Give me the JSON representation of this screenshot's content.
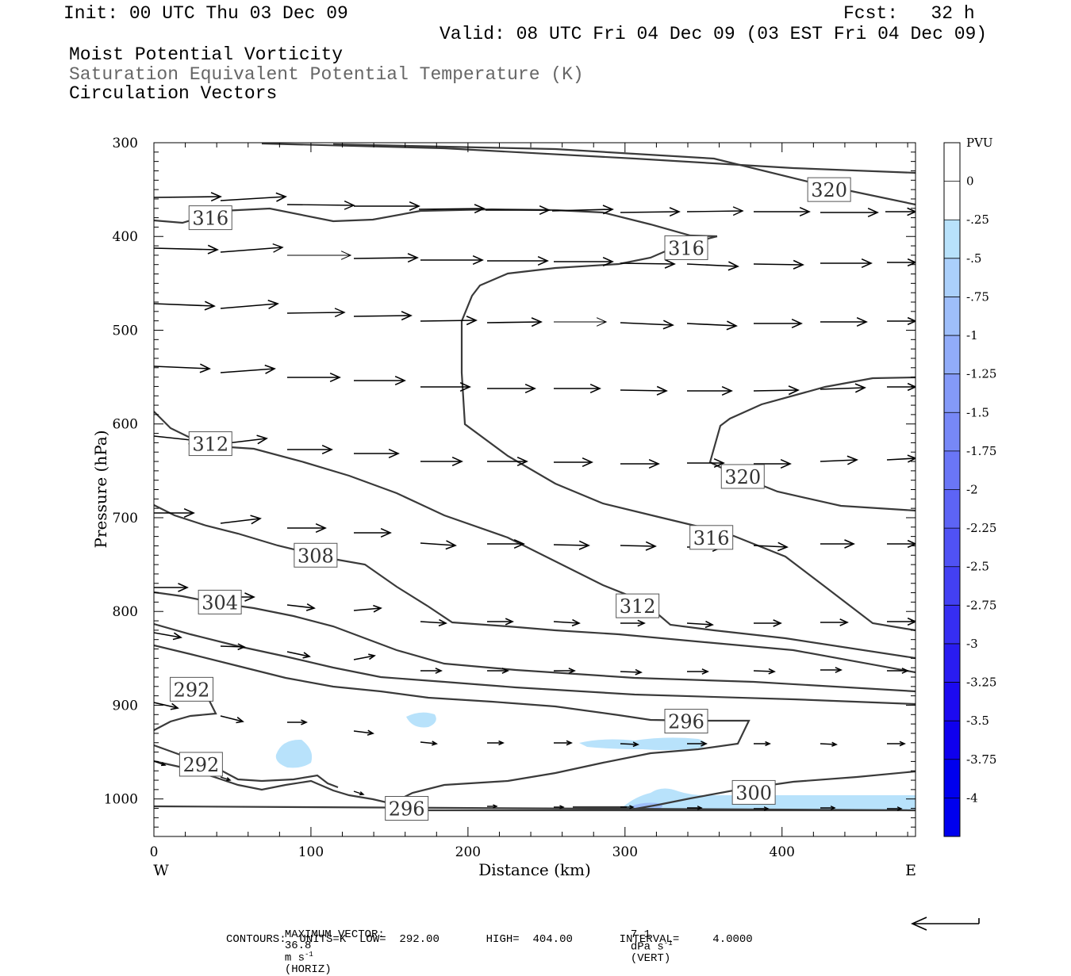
{
  "header": {
    "init": "Init: 00 UTC Thu 03 Dec 09",
    "fcst": "Fcst:   32 h",
    "valid": "Valid: 08 UTC Fri 04 Dec 09 (03 EST Fri 04 Dec 09)",
    "field1": "Moist Potential Vorticity",
    "field2": "Saturation Equivalent Potential Temperature (K)",
    "field3": "Circulation Vectors"
  },
  "footer": {
    "max_vector_label": "MAXIMUM VECTOR:",
    "max_horiz_value": "36.8",
    "horiz_units": "m s",
    "horiz_tag": "(HORIZ)",
    "max_vert_value": "7.1",
    "vert_units": "dPa s",
    "vert_tag": "(VERT)",
    "exponent": "-1",
    "contours_line": "CONTOURS:  UNITS=K  LOW=  292.00       HIGH=  404.00       INTERVAL=     4.0000"
  },
  "colors": {
    "contour": "#3a3a3a",
    "arrow": "#000000",
    "pv_shade": "#b8e2fb"
  },
  "chart_data": {
    "type": "cross-section",
    "xlabel": "Distance (km)",
    "ylabel": "Pressure (hPa)",
    "xlim": [
      0,
      485
    ],
    "ylim": [
      1040,
      300
    ],
    "x_ticks": [
      0,
      100,
      200,
      300,
      400
    ],
    "y_ticks": [
      300,
      400,
      500,
      600,
      700,
      800,
      900,
      1000
    ],
    "x_end_labels": {
      "west": "W",
      "east": "E"
    },
    "contour_labels": [
      {
        "value": "320",
        "x": 430,
        "p": 350
      },
      {
        "value": "316",
        "x": 36,
        "p": 380
      },
      {
        "value": "316",
        "x": 339,
        "p": 412
      },
      {
        "value": "312",
        "x": 36,
        "p": 621
      },
      {
        "value": "320",
        "x": 375,
        "p": 656
      },
      {
        "value": "316",
        "x": 355,
        "p": 721
      },
      {
        "value": "308",
        "x": 103,
        "p": 740
      },
      {
        "value": "304",
        "x": 42,
        "p": 790
      },
      {
        "value": "312",
        "x": 308,
        "p": 794
      },
      {
        "value": "292",
        "x": 24,
        "p": 883
      },
      {
        "value": "296",
        "x": 339,
        "p": 917
      },
      {
        "value": "292",
        "x": 30,
        "p": 963
      },
      {
        "value": "300",
        "x": 382,
        "p": 993
      },
      {
        "value": "296",
        "x": 161,
        "p": 1010
      }
    ],
    "colorbar": {
      "title": "PVU",
      "labels": [
        "0",
        "-.25",
        "-.5",
        "-.75",
        "-1",
        "-1.25",
        "-1.5",
        "-1.75",
        "-2",
        "-2.25",
        "-2.5",
        "-2.75",
        "-3",
        "-3.25",
        "-3.5",
        "-3.75",
        "-4"
      ],
      "colors": [
        "#ffffff",
        "#ffffff",
        "#b8e2fb",
        "#abd0fb",
        "#9ebefa",
        "#91acf9",
        "#849af8",
        "#7788f7",
        "#6a76f6",
        "#5d64f5",
        "#5052f4",
        "#4340f3",
        "#362ef2",
        "#291cf1",
        "#1c0af0",
        "#0f00ee",
        "#0000ee",
        "#0000ee"
      ]
    },
    "vector_levels_hpa": [
      360,
      370,
      410,
      425,
      475,
      495,
      540,
      560,
      620,
      640,
      700,
      725,
      780,
      810,
      830,
      860,
      905,
      935,
      1010
    ]
  }
}
